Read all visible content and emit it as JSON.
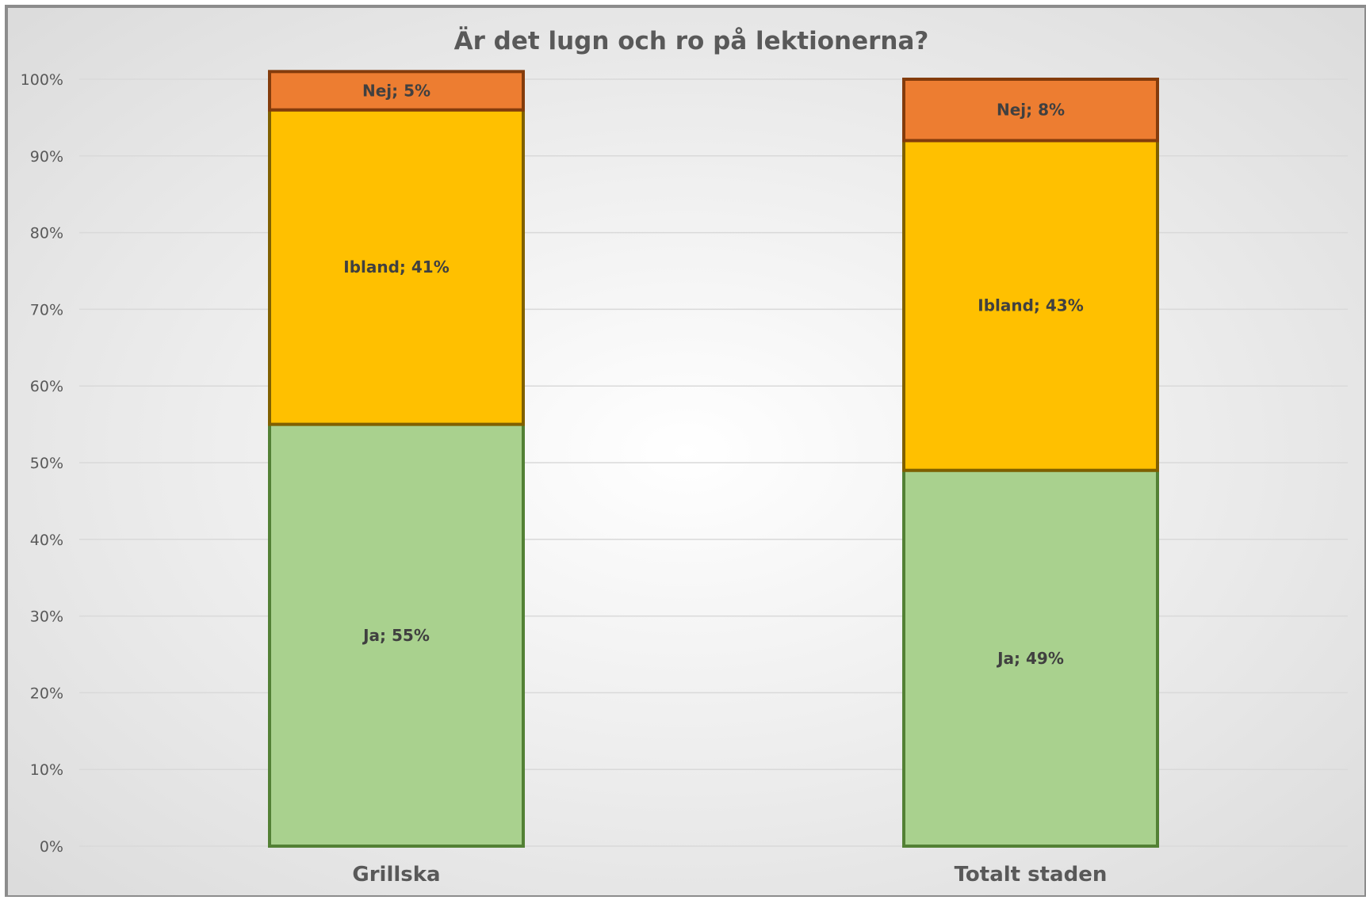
{
  "chart_data": {
    "type": "bar",
    "stacked": true,
    "title": "Är det lugn och ro på lektionerna?",
    "xlabel": "",
    "ylabel": "",
    "ylim": [
      0,
      100
    ],
    "yticks": [
      "0%",
      "10%",
      "20%",
      "30%",
      "40%",
      "50%",
      "60%",
      "70%",
      "80%",
      "90%",
      "100%"
    ],
    "categories": [
      "Grillska",
      "Totalt staden"
    ],
    "grid": true,
    "legend": "none",
    "series": [
      {
        "name": "Ja",
        "values": [
          55,
          49
        ],
        "labels": [
          "Ja; 55%",
          "Ja; 49%"
        ],
        "color": "#A9D18E",
        "stroke": "#538135"
      },
      {
        "name": "Ibland",
        "values": [
          41,
          43
        ],
        "labels": [
          "Ibland; 41%",
          "Ibland; 43%"
        ],
        "color": "#FFC000",
        "stroke": "#806000"
      },
      {
        "name": "Nej",
        "values": [
          5,
          8
        ],
        "labels": [
          "Nej; 5%",
          "Nej; 8%"
        ],
        "color": "#ED7D31",
        "stroke": "#843C0C"
      }
    ]
  }
}
